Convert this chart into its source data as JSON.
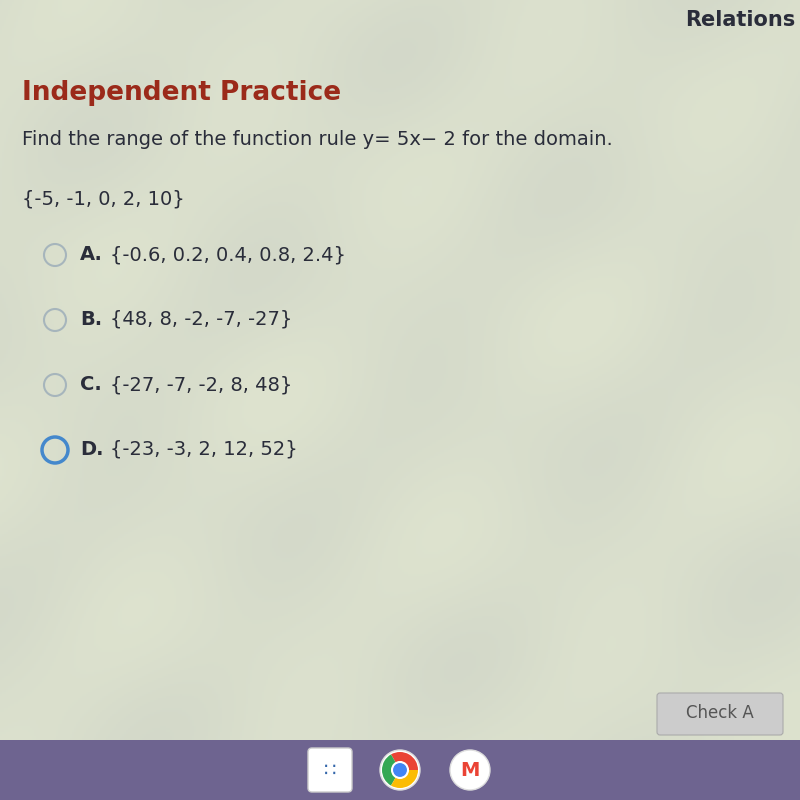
{
  "title": "Relations",
  "section_title": "Independent Practice",
  "question_plain": "Find the range of the function rule ",
  "question_math": "y= 5x− 2",
  "question_end": " for the domain.",
  "domain": "{-5, -1, 0, 2, 10}",
  "options": [
    {
      "letter": "A.",
      "text": "{-0.6, 0.2, 0.4, 0.8, 2.4}"
    },
    {
      "letter": "B.",
      "text": "{48, 8, -2, -7, -27}"
    },
    {
      "letter": "C.",
      "text": "{-27, -7, -2, 8, 48}"
    },
    {
      "letter": "D.",
      "text": "{-23, -3, 2, 12, 52}"
    }
  ],
  "selected_option": "D",
  "bg_color": "#d8dbd0",
  "content_bg": "#e2e4dc",
  "section_title_color": "#9b2a1a",
  "text_color": "#2a2d3a",
  "title_color": "#2a2d3a",
  "bottom_bar_color": "#6e6490",
  "check_button_color": "#cccccc",
  "check_button_text": "Check A",
  "selected_circle_color": "#4488cc",
  "unselected_circle_color": "#9aabb8",
  "option_letter_color": "#2a2d3a",
  "option_text_color": "#2a2d3a"
}
